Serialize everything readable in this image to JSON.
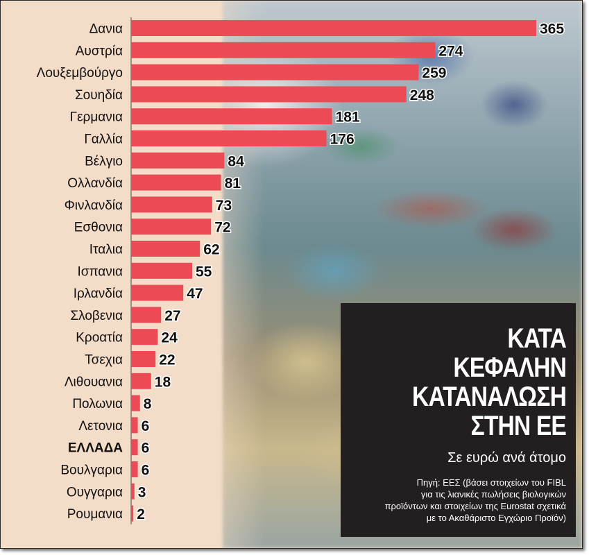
{
  "chart_data": {
    "type": "bar",
    "orientation": "horizontal",
    "categories": [
      "Δανια",
      "Αυστρία",
      "Λουξεμβούργο",
      "Σουηδία",
      "Γερμανια",
      "Γαλλία",
      "Βέλγιο",
      "Ολλανδία",
      "Φινλανδία",
      "Εσθονια",
      "Ιταλια",
      "Ισπανια",
      "Ιρλανδία",
      "Σλοβενια",
      "Κροατία",
      "Τσεχια",
      "Λιθουανια",
      "Πολωνια",
      "Λετονια",
      "ΕΛΛΑΔΑ",
      "Βουλγαρια",
      "Ουγγαρια",
      "Ρουμανια"
    ],
    "values": [
      365,
      274,
      259,
      248,
      181,
      176,
      84,
      81,
      73,
      72,
      62,
      55,
      47,
      27,
      24,
      22,
      18,
      8,
      6,
      6,
      6,
      3,
      2
    ],
    "highlight": "ΕΛΛΑΔΑ",
    "xlim": [
      0,
      365
    ],
    "bar_color": "#ec4b55",
    "grid": false,
    "title": "ΚΑΤΑ ΚΕΦΑΛΗΝ ΚΑΤΑΝΑΛΩΣΗ ΣΤΗΝ ΕΕ",
    "title_lines": [
      "ΚΑΤΑ",
      "ΚΕΦΑΛΗΝ",
      "ΚΑΤΑΝΑΛΩΣΗ",
      "ΣΤΗΝ ΕΕ"
    ],
    "subtitle": "Σε ευρώ ανά άτομο",
    "source_lines": [
      "Πηγή: ΕΕΣ (βάσει στοιχείων του FIBL",
      "για τις λιανικές πωλήσεις βιολογικών",
      "προϊόντων και στοιχείων της Eurostat σχετικά",
      "με το Ακαθάριστο Εγχώριο Προϊόν)"
    ]
  },
  "colors": {
    "background": "#f3dcc8",
    "infobox": "#231f20",
    "bar": "#ec4b55"
  }
}
